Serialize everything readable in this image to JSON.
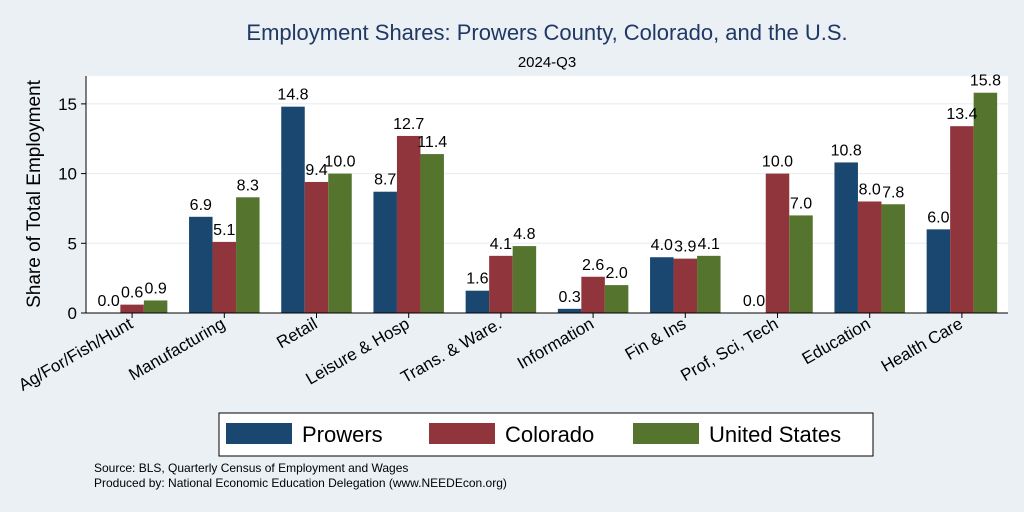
{
  "colors": {
    "background": "#ebf0f5",
    "plot_background": "#ffffff",
    "gridline": "#e8ecf0",
    "title": "#1f3864",
    "prowers": "#1a476f",
    "colorado": "#90353b",
    "united_states": "#55752f"
  },
  "footer": {
    "source": "Source: BLS, Quarterly Census of Employment and Wages",
    "produced_by": "Produced by: National Economic Education Delegation (www.NEEDEcon.org)"
  },
  "chart_data": {
    "type": "bar",
    "title": "Employment Shares: Prowers County, Colorado, and the U.S.",
    "subtitle": "2024-Q3",
    "xlabel": "",
    "ylabel": "Share of Total Employment",
    "ylim": [
      0,
      17
    ],
    "yticks": [
      0,
      5,
      10,
      15
    ],
    "grid": true,
    "legend_position": "bottom",
    "categories": [
      "Ag/For/Fish/Hunt",
      "Manufacturing",
      "Retail",
      "Leisure & Hosp",
      "Trans. & Ware.",
      "Information",
      "Fin & Ins",
      "Prof, Sci, Tech",
      "Education",
      "Health Care"
    ],
    "series": [
      {
        "name": "Prowers",
        "color": "#1a476f",
        "values": [
          0.0,
          6.9,
          14.8,
          8.7,
          1.6,
          0.3,
          4.0,
          0.0,
          10.8,
          6.0
        ],
        "labels": [
          "0.0",
          "6.9",
          "14.8",
          "8.7",
          "1.6",
          "0.3",
          "4.0",
          "0.0",
          "10.8",
          "6.0"
        ]
      },
      {
        "name": "Colorado",
        "color": "#90353b",
        "values": [
          0.6,
          5.1,
          9.4,
          12.7,
          4.1,
          2.6,
          3.9,
          10.0,
          8.0,
          13.4
        ],
        "labels": [
          "0.6",
          "5.1",
          "9.4",
          "12.7",
          "4.1",
          "2.6",
          "3.9",
          "10.0",
          "8.0",
          "13.4"
        ]
      },
      {
        "name": "United States",
        "color": "#55752f",
        "values": [
          0.9,
          8.3,
          10.0,
          11.4,
          4.8,
          2.0,
          4.1,
          7.0,
          7.8,
          15.8
        ],
        "labels": [
          "0.9",
          "8.3",
          "10.0",
          "11.4",
          "4.8",
          "2.0",
          "4.1",
          "7.0",
          "7.8",
          "15.8"
        ]
      }
    ]
  }
}
